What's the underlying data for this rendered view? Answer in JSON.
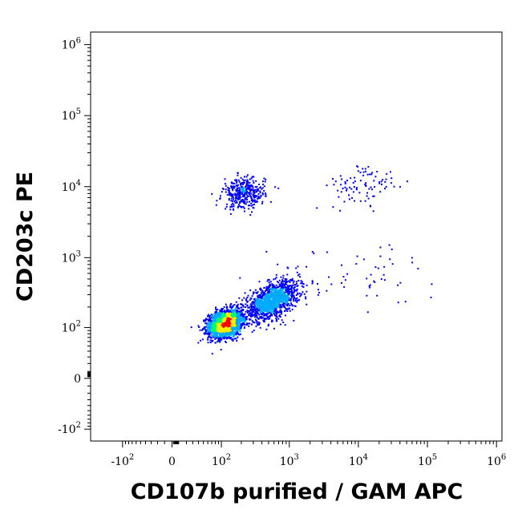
{
  "chart_data": {
    "type": "scatter",
    "style": "flow-cytometry density dot plot (pseudocolor: blue low, green mid, yellow, red high)",
    "xlabel": "CD107b purified / GAM APC",
    "ylabel": "CD203c PE",
    "x_scale": "biexponential (log with linear region around 0)",
    "y_scale": "biexponential (log with linear region around 0)",
    "xlim": [
      -300,
      1200000
    ],
    "ylim": [
      -150,
      1500000
    ],
    "grid": false,
    "x_ticks": [
      {
        "value": -100,
        "base": "-10",
        "exp": "2"
      },
      {
        "value": 0,
        "base": "0",
        "exp": ""
      },
      {
        "value": 100,
        "base": "10",
        "exp": "2"
      },
      {
        "value": 1000,
        "base": "10",
        "exp": "3"
      },
      {
        "value": 10000,
        "base": "10",
        "exp": "4"
      },
      {
        "value": 100000,
        "base": "10",
        "exp": "5"
      },
      {
        "value": 1000000,
        "base": "10",
        "exp": "6"
      }
    ],
    "y_ticks": [
      {
        "value": 1000000,
        "base": "10",
        "exp": "6"
      },
      {
        "value": 100000,
        "base": "10",
        "exp": "5"
      },
      {
        "value": 10000,
        "base": "10",
        "exp": "4"
      },
      {
        "value": 1000,
        "base": "10",
        "exp": "3"
      },
      {
        "value": 100,
        "base": "10",
        "exp": "2"
      },
      {
        "value": 0,
        "base": "0",
        "exp": ""
      },
      {
        "value": -100,
        "base": "-10",
        "exp": "2"
      }
    ],
    "populations": [
      {
        "id": "main",
        "x_center": 115,
        "y_center": 115,
        "density": "very high (red core)"
      },
      {
        "id": "tail",
        "x_center": 550,
        "y_center": 240,
        "density": "medium (cyan/green)"
      },
      {
        "id": "upper",
        "x_center": 220,
        "y_center": 8000,
        "density": "low (blue)"
      },
      {
        "id": "upper-right",
        "x_center": 12000,
        "y_center": 10000,
        "density": "sparse (blue)"
      }
    ],
    "colors": {
      "low": "#0000ff",
      "mid_low": "#00aaff",
      "mid": "#00ff66",
      "mid_high": "#ffee00",
      "high": "#ff0000"
    }
  }
}
